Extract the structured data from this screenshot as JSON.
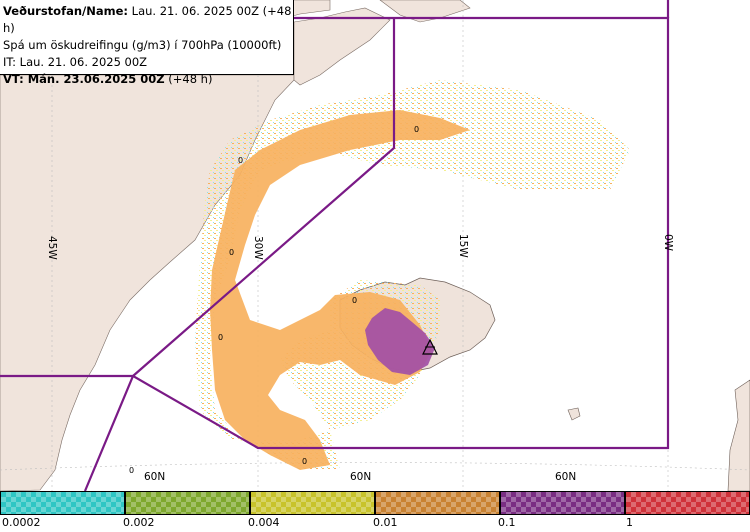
{
  "header": {
    "line1_bold": "Veðurstofan/Name:",
    "line1_rest": " Lau. 21. 06. 2025 00Z (+48 h)",
    "line2": "Spá um öskudreifingu (g/m3) í 700hPa (10000ft)",
    "line3": "IT: Lau. 21. 06. 2025 00Z",
    "line4_bold": "VT: Mán. 23.06.2025 00Z",
    "line4_rest": " (+48 h)"
  },
  "map": {
    "lon_labels": [
      "45W",
      "30W",
      "15W",
      "0W"
    ],
    "lat_labels": [
      "60N",
      "60N",
      "60N"
    ],
    "contour_labels": [
      "0",
      "0",
      "0",
      "0",
      "0",
      "0",
      "0"
    ],
    "colors": {
      "land": "#f0e4dc",
      "sea": "#ffffff",
      "iceland": "#efe3db",
      "glacier": "#ffffff",
      "boundary": "#7a1a86",
      "ash_orange": "#f7b15e",
      "ash_purple": "#a24fa6",
      "ash_yellow": "#f4ef90",
      "ash_cyan": "#8fe3e0"
    },
    "volcano_marker": "triangle-volcano-symbol"
  },
  "legend": {
    "bins": [
      {
        "label": "0.0002",
        "color": "#2fc6c4"
      },
      {
        "label": "0.002",
        "color": "#7ea82e"
      },
      {
        "label": "0.004",
        "color": "#c8c32b"
      },
      {
        "label": "0.01",
        "color": "#c98232"
      },
      {
        "label": "0.1",
        "color": "#7a2e83"
      },
      {
        "label": "1",
        "color": "#d0323a"
      }
    ]
  }
}
